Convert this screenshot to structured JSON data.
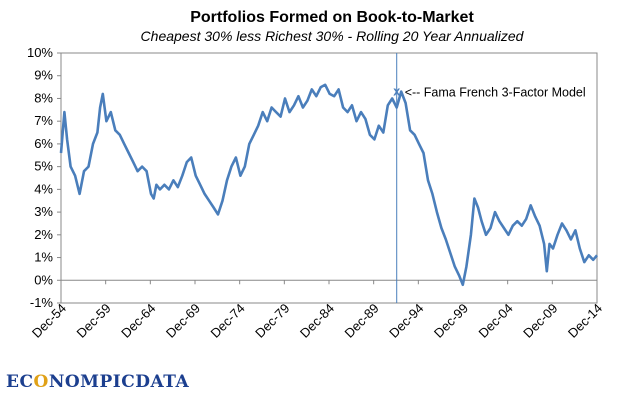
{
  "chart_data": {
    "type": "line",
    "title": "Portfolios Formed on Book-to-Market",
    "subtitle": "Cheapest 30% less Richest 30% - Rolling 20 Year Annualized",
    "ylim": [
      -1,
      10
    ],
    "yticks": [
      "-1%",
      "0%",
      "1%",
      "2%",
      "3%",
      "4%",
      "5%",
      "6%",
      "7%",
      "8%",
      "9%",
      "10%"
    ],
    "xticks": [
      "Dec-54",
      "Dec-59",
      "Dec-64",
      "Dec-69",
      "Dec-74",
      "Dec-79",
      "Dec-84",
      "Dec-89",
      "Dec-94",
      "Dec-99",
      "Dec-04",
      "Dec-09",
      "Dec-14"
    ],
    "xlim": [
      1954.92,
      2014.92
    ],
    "grid": false,
    "series": [
      {
        "color": "#4a7ebb",
        "points": [
          [
            1954.92,
            5.6
          ],
          [
            1955.3,
            7.4
          ],
          [
            1955.6,
            6.2
          ],
          [
            1956.0,
            5.0
          ],
          [
            1956.5,
            4.6
          ],
          [
            1957.0,
            3.8
          ],
          [
            1957.5,
            4.8
          ],
          [
            1958.0,
            5.0
          ],
          [
            1958.5,
            6.0
          ],
          [
            1959.0,
            6.5
          ],
          [
            1959.3,
            7.6
          ],
          [
            1959.6,
            8.2
          ],
          [
            1960.0,
            7.0
          ],
          [
            1960.5,
            7.4
          ],
          [
            1961.0,
            6.6
          ],
          [
            1961.5,
            6.4
          ],
          [
            1962.0,
            6.0
          ],
          [
            1962.5,
            5.6
          ],
          [
            1963.0,
            5.2
          ],
          [
            1963.5,
            4.8
          ],
          [
            1964.0,
            5.0
          ],
          [
            1964.5,
            4.8
          ],
          [
            1965.0,
            3.8
          ],
          [
            1965.3,
            3.6
          ],
          [
            1965.6,
            4.2
          ],
          [
            1966.0,
            4.0
          ],
          [
            1966.5,
            4.2
          ],
          [
            1967.0,
            4.0
          ],
          [
            1967.5,
            4.4
          ],
          [
            1968.0,
            4.1
          ],
          [
            1968.5,
            4.6
          ],
          [
            1969.0,
            5.2
          ],
          [
            1969.5,
            5.4
          ],
          [
            1970.0,
            4.6
          ],
          [
            1970.5,
            4.2
          ],
          [
            1971.0,
            3.8
          ],
          [
            1971.5,
            3.5
          ],
          [
            1972.0,
            3.2
          ],
          [
            1972.5,
            2.9
          ],
          [
            1973.0,
            3.5
          ],
          [
            1973.5,
            4.4
          ],
          [
            1974.0,
            5.0
          ],
          [
            1974.5,
            5.4
          ],
          [
            1975.0,
            4.6
          ],
          [
            1975.5,
            5.0
          ],
          [
            1976.0,
            6.0
          ],
          [
            1976.5,
            6.4
          ],
          [
            1977.0,
            6.8
          ],
          [
            1977.5,
            7.4
          ],
          [
            1978.0,
            7.0
          ],
          [
            1978.5,
            7.6
          ],
          [
            1979.0,
            7.4
          ],
          [
            1979.5,
            7.2
          ],
          [
            1980.0,
            8.0
          ],
          [
            1980.5,
            7.4
          ],
          [
            1981.0,
            7.7
          ],
          [
            1981.5,
            8.1
          ],
          [
            1982.0,
            7.6
          ],
          [
            1982.5,
            7.9
          ],
          [
            1983.0,
            8.4
          ],
          [
            1983.5,
            8.1
          ],
          [
            1984.0,
            8.5
          ],
          [
            1984.5,
            8.6
          ],
          [
            1985.0,
            8.2
          ],
          [
            1985.5,
            8.1
          ],
          [
            1986.0,
            8.4
          ],
          [
            1986.5,
            7.6
          ],
          [
            1987.0,
            7.4
          ],
          [
            1987.5,
            7.7
          ],
          [
            1988.0,
            7.0
          ],
          [
            1988.5,
            7.4
          ],
          [
            1989.0,
            7.1
          ],
          [
            1989.5,
            6.4
          ],
          [
            1990.0,
            6.2
          ],
          [
            1990.5,
            6.8
          ],
          [
            1991.0,
            6.5
          ],
          [
            1991.5,
            7.7
          ],
          [
            1992.0,
            8.0
          ],
          [
            1992.5,
            7.6
          ],
          [
            1993.0,
            8.3
          ],
          [
            1993.5,
            7.8
          ],
          [
            1994.0,
            6.6
          ],
          [
            1994.5,
            6.4
          ],
          [
            1995.0,
            6.0
          ],
          [
            1995.5,
            5.6
          ],
          [
            1996.0,
            4.4
          ],
          [
            1996.5,
            3.8
          ],
          [
            1997.0,
            3.0
          ],
          [
            1997.5,
            2.3
          ],
          [
            1998.0,
            1.8
          ],
          [
            1998.5,
            1.2
          ],
          [
            1999.0,
            0.6
          ],
          [
            1999.5,
            0.2
          ],
          [
            1999.9,
            -0.2
          ],
          [
            2000.3,
            0.6
          ],
          [
            2000.8,
            2.0
          ],
          [
            2001.2,
            3.6
          ],
          [
            2001.6,
            3.2
          ],
          [
            2002.0,
            2.6
          ],
          [
            2002.5,
            2.0
          ],
          [
            2003.0,
            2.3
          ],
          [
            2003.5,
            3.0
          ],
          [
            2004.0,
            2.6
          ],
          [
            2004.5,
            2.3
          ],
          [
            2005.0,
            2.0
          ],
          [
            2005.5,
            2.4
          ],
          [
            2006.0,
            2.6
          ],
          [
            2006.5,
            2.4
          ],
          [
            2007.0,
            2.7
          ],
          [
            2007.5,
            3.3
          ],
          [
            2008.0,
            2.8
          ],
          [
            2008.5,
            2.4
          ],
          [
            2009.0,
            1.6
          ],
          [
            2009.3,
            0.4
          ],
          [
            2009.6,
            1.6
          ],
          [
            2010.0,
            1.4
          ],
          [
            2010.5,
            2.0
          ],
          [
            2011.0,
            2.5
          ],
          [
            2011.5,
            2.2
          ],
          [
            2012.0,
            1.8
          ],
          [
            2012.5,
            2.2
          ],
          [
            2013.0,
            1.4
          ],
          [
            2013.5,
            0.8
          ],
          [
            2014.0,
            1.1
          ],
          [
            2014.5,
            0.9
          ],
          [
            2014.92,
            1.1
          ]
        ]
      }
    ],
    "annotation": {
      "text": "<-- Fama French 3-Factor Model",
      "marker": "x",
      "x": 1992.5,
      "y": 8.3
    },
    "vline": {
      "x": 1992.5
    }
  },
  "logo": {
    "part1": "EC",
    "part2": "O",
    "part3": "NOMPICDATA"
  }
}
